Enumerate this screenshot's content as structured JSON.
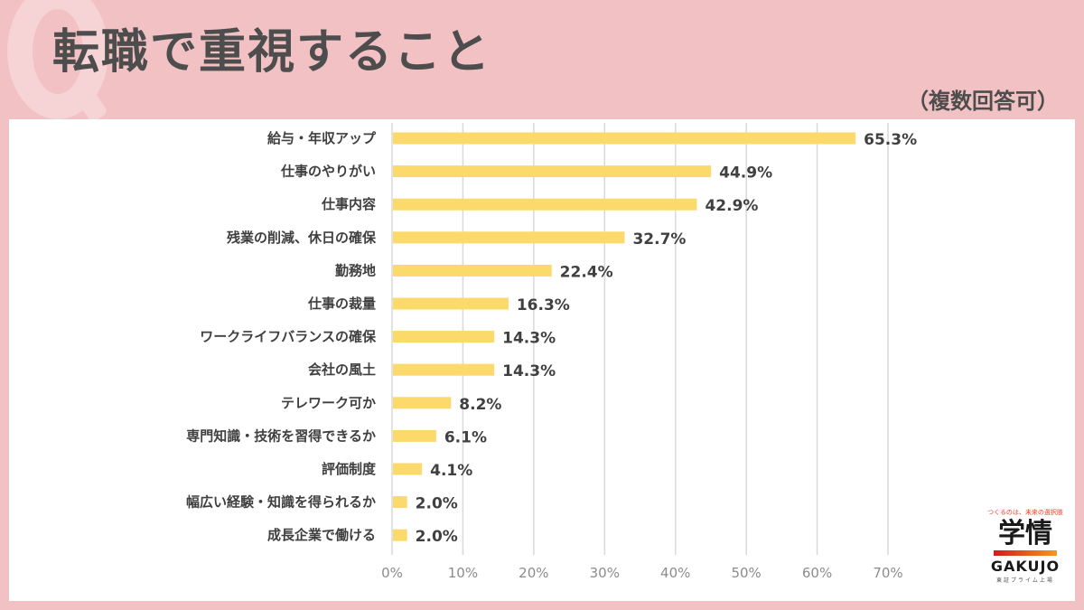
{
  "header": {
    "title": "転職で重視すること",
    "subtitle": "（複数回答可）"
  },
  "logo": {
    "tagline": "つくるのは、未来の選択肢",
    "name_kanji": "学情",
    "name_en": "GAKUJO",
    "sub": "東証プライム上場"
  },
  "colors": {
    "background": "#f2c1c3",
    "bar": "#fcd96b",
    "grid": "#d9d9d9",
    "text": "#404040"
  },
  "chart_data": {
    "type": "bar",
    "orientation": "horizontal",
    "title": "転職で重視すること",
    "subtitle": "（複数回答可）",
    "categories": [
      "給与・年収アップ",
      "仕事のやりがい",
      "仕事内容",
      "残業の削減、休日の確保",
      "勤務地",
      "仕事の裁量",
      "ワークライフバランスの確保",
      "会社の風土",
      "テレワーク可か",
      "専門知識・技術を習得できるか",
      "評価制度",
      "幅広い経験・知識を得られるか",
      "成長企業で働ける"
    ],
    "values": [
      65.3,
      44.9,
      42.9,
      32.7,
      22.4,
      16.3,
      14.3,
      14.3,
      8.2,
      6.1,
      4.1,
      2.0,
      2.0
    ],
    "value_labels": [
      "65.3%",
      "44.9%",
      "42.9%",
      "32.7%",
      "22.4%",
      "16.3%",
      "14.3%",
      "14.3%",
      "8.2%",
      "6.1%",
      "4.1%",
      "2.0%",
      "2.0%"
    ],
    "xlabel": "",
    "ylabel": "",
    "xlim": [
      0,
      70
    ],
    "xticks": [
      0,
      10,
      20,
      30,
      40,
      50,
      60,
      70
    ],
    "xtick_labels": [
      "0%",
      "10%",
      "20%",
      "30%",
      "40%",
      "50%",
      "60%",
      "70%"
    ],
    "grid": true,
    "legend": "none"
  }
}
